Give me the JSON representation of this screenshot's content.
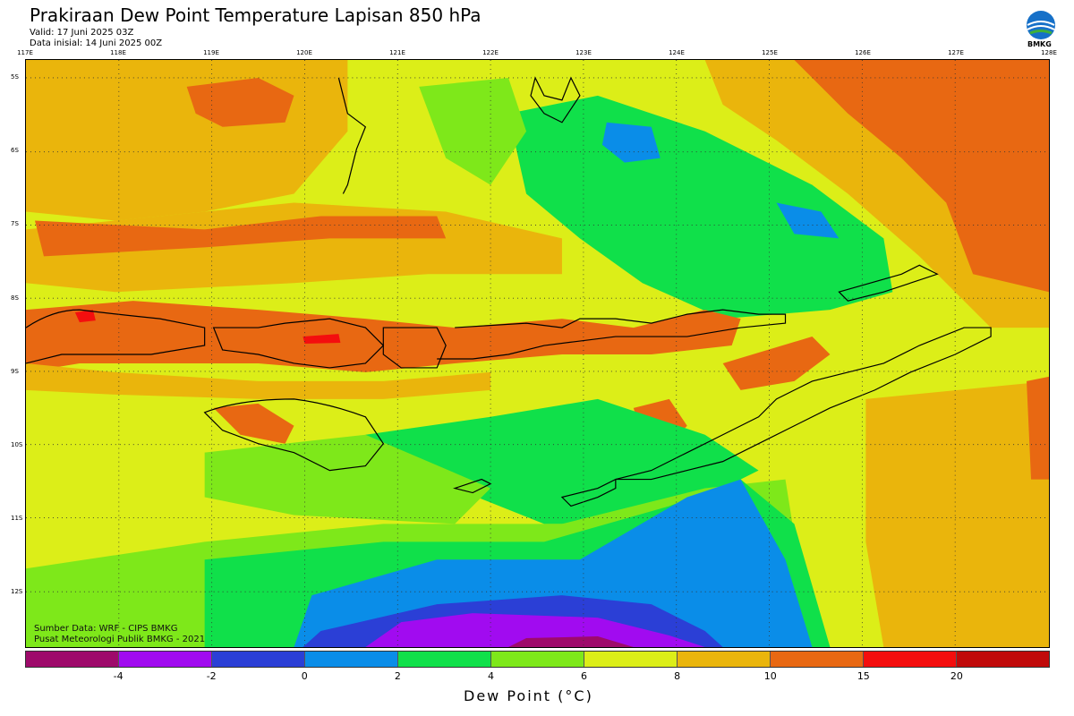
{
  "header": {
    "title": "Prakiraan Dew Point Temperature Lapisan 850 hPa",
    "valid": "Valid: 17 Juni 2025 03Z",
    "init": "Data inisial: 14 Juni 2025 00Z"
  },
  "logo": {
    "text": "BMKG",
    "icon": "bmkg-logo-icon"
  },
  "axes": {
    "lon_labels": [
      "117E",
      "118E",
      "119E",
      "120E",
      "121E",
      "122E",
      "123E",
      "124E",
      "125E",
      "126E",
      "127E",
      "128E"
    ],
    "lat_labels": [
      "5S",
      "6S",
      "7S",
      "8S",
      "9S",
      "10S",
      "11S",
      "12S"
    ]
  },
  "credits": {
    "source": "Sumber Data: WRF - CIPS BMKG",
    "org": "Pusat Meteorologi Publik BMKG - 2021"
  },
  "colorbar": {
    "title": "Dew Point (°C)",
    "colors": [
      "#9e0a6b",
      "#a10bf0",
      "#2b3fd6",
      "#0a8de8",
      "#10e04a",
      "#7ee81a",
      "#dcee18",
      "#eab50c",
      "#e86812",
      "#f40e0e",
      "#c00a0a"
    ],
    "ticks": [
      "-4",
      "-2",
      "0",
      "2",
      "4",
      "6",
      "8",
      "10",
      "15",
      "20"
    ]
  },
  "palette": {
    "purple": "#a10bf0",
    "blue": "#2b3fd6",
    "lightblue": "#0a8de8",
    "green": "#10e04a",
    "lightgreen": "#7ee81a",
    "yellow": "#dcee18",
    "gold": "#eab50c",
    "orange": "#e86812",
    "red": "#f40e0e"
  }
}
